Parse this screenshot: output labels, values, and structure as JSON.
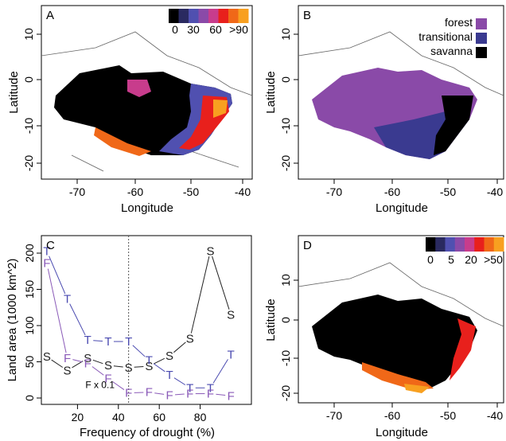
{
  "panels": {
    "A": {
      "label": "A",
      "xlabel": "Longitude",
      "ylabel": "Latitude",
      "xticks": [
        "-70",
        "-60",
        "-50",
        "-40"
      ],
      "yticks": [
        "10",
        "0",
        "-10",
        "-20"
      ],
      "colorbar": {
        "labels": [
          "0",
          "30",
          "60",
          ">90"
        ],
        "colors": [
          "#000000",
          "#2a2a60",
          "#5050b0",
          "#8a4aa8",
          "#c83c8c",
          "#e8201c",
          "#f06818",
          "#f8a020"
        ]
      }
    },
    "B": {
      "label": "B",
      "xlabel": "Longitude",
      "ylabel": "Latitude",
      "xticks": [
        "-70",
        "-60",
        "-50",
        "-40"
      ],
      "yticks": [
        "10",
        "0",
        "-10",
        "-20"
      ],
      "legend": [
        {
          "label": "forest",
          "color": "#8a4aa8"
        },
        {
          "label": "transitional",
          "color": "#3a3a90"
        },
        {
          "label": "savanna",
          "color": "#000000"
        }
      ]
    },
    "D": {
      "label": "D",
      "xlabel": "Longitude",
      "ylabel": "Latitude",
      "xticks": [
        "-70",
        "-60",
        "-50",
        "-40"
      ],
      "yticks": [
        "10",
        "0",
        "-10",
        "-20"
      ],
      "colorbar": {
        "labels": [
          "0",
          "5",
          "20",
          ">50"
        ],
        "colors": [
          "#000000",
          "#2a2a60",
          "#5050b0",
          "#8a4aa8",
          "#c83c8c",
          "#e8201c",
          "#f06818",
          "#f8a020"
        ]
      }
    }
  },
  "chart_data": {
    "type": "line",
    "panel_label": "C",
    "xlabel": "Frequency of drought (%)",
    "ylabel": "Land area (1000 km^2)",
    "xlim": [
      0,
      100
    ],
    "ylim": [
      0,
      210
    ],
    "xticks": [
      "20",
      "40",
      "60",
      "80"
    ],
    "yticks": [
      "0",
      "50",
      "100",
      "150",
      "200"
    ],
    "vline_x": 45,
    "annotation": "F x 0.1",
    "x": [
      5,
      15,
      25,
      35,
      45,
      55,
      65,
      75,
      85,
      95
    ],
    "series": [
      {
        "name": "S",
        "marker": "S",
        "color": "#222222",
        "values": [
          57,
          38,
          55,
          45,
          42,
          44,
          58,
          82,
          203,
          115
        ]
      },
      {
        "name": "T",
        "marker": "T",
        "color": "#4a4ab0",
        "values": [
          203,
          137,
          80,
          78,
          78,
          52,
          32,
          14,
          14,
          60
        ]
      },
      {
        "name": "F",
        "marker": "F",
        "color": "#8a5ab8",
        "values": [
          186,
          55,
          48,
          27,
          7,
          8,
          4,
          6,
          6,
          3
        ]
      }
    ]
  }
}
